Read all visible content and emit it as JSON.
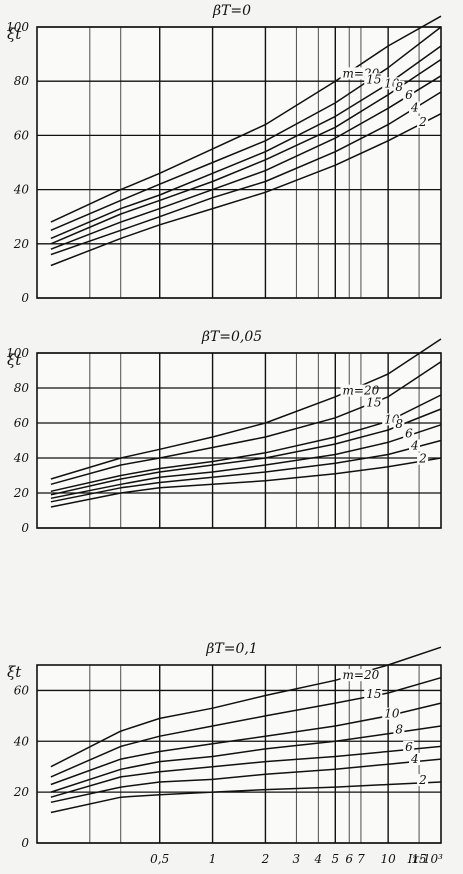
{
  "chart_data": [
    {
      "type": "line",
      "title": "βT=0",
      "ylabel": "ξt",
      "xlabel": "",
      "x_scale": "log",
      "xlim": [
        0.1,
        20
      ],
      "ylim": [
        0,
        100
      ],
      "y_ticks": [
        "0",
        "20",
        "40",
        "60",
        "80",
        "100"
      ],
      "grid": true,
      "series": [
        {
          "name": "m=20",
          "x": [
            0.12,
            0.3,
            0.5,
            1,
            2,
            5,
            10,
            20
          ],
          "y": [
            28,
            40,
            46,
            55,
            64,
            80,
            93,
            104
          ]
        },
        {
          "name": "15",
          "x": [
            0.12,
            0.3,
            0.5,
            1,
            2,
            5,
            10,
            20
          ],
          "y": [
            25,
            36,
            42,
            50,
            58,
            72,
            85,
            100
          ]
        },
        {
          "name": "10",
          "x": [
            0.12,
            0.3,
            0.5,
            1,
            2,
            5,
            10,
            20
          ],
          "y": [
            22,
            33,
            38,
            46,
            54,
            67,
            79,
            93
          ]
        },
        {
          "name": "8",
          "x": [
            0.12,
            0.3,
            0.5,
            1,
            2,
            5,
            10,
            20
          ],
          "y": [
            20,
            31,
            36,
            43,
            51,
            63,
            75,
            88
          ]
        },
        {
          "name": "6",
          "x": [
            0.12,
            0.3,
            0.5,
            1,
            2,
            5,
            10,
            20
          ],
          "y": [
            18,
            28,
            33,
            40,
            47,
            59,
            70,
            82
          ]
        },
        {
          "name": "4",
          "x": [
            0.12,
            0.3,
            0.5,
            1,
            2,
            5,
            10,
            20
          ],
          "y": [
            16,
            25,
            30,
            37,
            43,
            54,
            64,
            76
          ]
        },
        {
          "name": "2",
          "x": [
            0.12,
            0.3,
            0.5,
            1,
            2,
            5,
            10,
            20
          ],
          "y": [
            12,
            22,
            27,
            33,
            39,
            49,
            58,
            68
          ]
        }
      ]
    },
    {
      "type": "line",
      "title": "βT=0,05",
      "ylabel": "ξt",
      "xlabel": "",
      "x_scale": "log",
      "xlim": [
        0.1,
        20
      ],
      "ylim": [
        0,
        100
      ],
      "y_ticks": [
        "0",
        "20",
        "40",
        "60",
        "80",
        "100"
      ],
      "grid": true,
      "series": [
        {
          "name": "m=20",
          "x": [
            0.12,
            0.3,
            0.5,
            1,
            2,
            5,
            10,
            20
          ],
          "y": [
            28,
            40,
            45,
            52,
            60,
            75,
            88,
            108
          ]
        },
        {
          "name": "15",
          "x": [
            0.12,
            0.3,
            0.5,
            1,
            2,
            5,
            10,
            20
          ],
          "y": [
            25,
            36,
            40,
            46,
            52,
            63,
            75,
            95
          ]
        },
        {
          "name": "10",
          "x": [
            0.12,
            0.3,
            0.5,
            1,
            2,
            5,
            10,
            20
          ],
          "y": [
            21,
            30,
            34,
            38,
            43,
            52,
            61,
            76
          ]
        },
        {
          "name": "8",
          "x": [
            0.12,
            0.3,
            0.5,
            1,
            2,
            5,
            10,
            20
          ],
          "y": [
            19,
            28,
            32,
            36,
            40,
            48,
            56,
            68
          ]
        },
        {
          "name": "6",
          "x": [
            0.12,
            0.3,
            0.5,
            1,
            2,
            5,
            10,
            20
          ],
          "y": [
            17,
            25,
            29,
            32,
            36,
            42,
            49,
            59
          ]
        },
        {
          "name": "4",
          "x": [
            0.12,
            0.3,
            0.5,
            1,
            2,
            5,
            10,
            20
          ],
          "y": [
            15,
            23,
            26,
            29,
            32,
            37,
            42,
            50
          ]
        },
        {
          "name": "2",
          "x": [
            0.12,
            0.3,
            0.5,
            1,
            2,
            5,
            10,
            20
          ],
          "y": [
            12,
            20,
            23,
            25,
            27,
            31,
            35,
            40
          ]
        }
      ]
    },
    {
      "type": "line",
      "title": "βT=0,1",
      "ylabel": "ξt",
      "xlabel": "Iτ·10³",
      "x_scale": "log",
      "xlim": [
        0.1,
        20
      ],
      "ylim": [
        0,
        70
      ],
      "y_ticks": [
        "0",
        "20",
        "40",
        "60"
      ],
      "x_ticks": [
        "0,5",
        "1",
        "2",
        "3",
        "4",
        "5",
        "6",
        "7",
        "10",
        "15"
      ],
      "grid": true,
      "series": [
        {
          "name": "m=20",
          "x": [
            0.12,
            0.3,
            0.5,
            1,
            2,
            5,
            10,
            20
          ],
          "y": [
            30,
            44,
            49,
            53,
            58,
            64,
            70,
            77
          ]
        },
        {
          "name": "15",
          "x": [
            0.12,
            0.3,
            0.5,
            1,
            2,
            5,
            10,
            20
          ],
          "y": [
            26,
            38,
            42,
            46,
            50,
            55,
            59,
            65
          ]
        },
        {
          "name": "10",
          "x": [
            0.12,
            0.3,
            0.5,
            1,
            2,
            5,
            10,
            20
          ],
          "y": [
            23,
            33,
            36,
            39,
            42,
            46,
            50,
            55
          ]
        },
        {
          "name": "8",
          "x": [
            0.12,
            0.3,
            0.5,
            1,
            2,
            5,
            10,
            20
          ],
          "y": [
            20,
            29,
            32,
            34,
            37,
            40,
            43,
            46
          ]
        },
        {
          "name": "6",
          "x": [
            0.12,
            0.3,
            0.5,
            1,
            2,
            5,
            10,
            20
          ],
          "y": [
            18,
            26,
            28,
            30,
            32,
            34,
            36,
            38
          ]
        },
        {
          "name": "4",
          "x": [
            0.12,
            0.3,
            0.5,
            1,
            2,
            5,
            10,
            20
          ],
          "y": [
            16,
            22,
            24,
            25,
            27,
            29,
            31,
            33
          ]
        },
        {
          "name": "2",
          "x": [
            0.12,
            0.3,
            0.5,
            1,
            2,
            5,
            10,
            20
          ],
          "y": [
            12,
            18,
            19,
            20,
            21,
            22,
            23,
            24
          ]
        }
      ]
    }
  ]
}
